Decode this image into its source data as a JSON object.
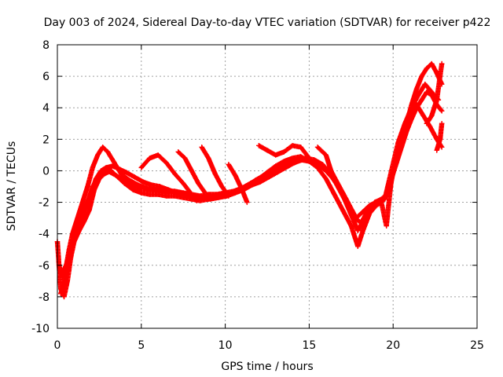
{
  "chart_data": {
    "type": "scatter",
    "title": "Day 003 of 2024, Sidereal Day-to-day VTEC variation (SDTVAR) for receiver p422",
    "xlabel": "GPS time / hours",
    "ylabel": "SDTVAR / TECUs",
    "xlim": [
      0,
      25
    ],
    "ylim": [
      -10,
      8
    ],
    "xticks": [
      0,
      5,
      10,
      15,
      20,
      25
    ],
    "yticks": [
      -10,
      -8,
      -6,
      -4,
      -2,
      0,
      2,
      4,
      6,
      8
    ],
    "grid": true,
    "marker": "+",
    "color": "#ff0000",
    "series": [
      {
        "x": [
          0.0,
          0.2,
          0.4,
          0.6,
          0.8,
          1.0,
          1.3,
          1.6,
          1.9,
          2.2,
          2.5,
          2.8,
          3.2,
          3.6,
          4.0,
          4.5,
          5.0,
          5.5,
          6.0,
          6.5,
          7.0,
          7.5,
          8.0,
          8.5,
          9.0,
          9.5,
          10.0,
          10.5,
          11.0,
          11.5,
          12.0,
          12.5,
          13.0,
          13.5,
          14.0,
          14.5,
          15.0,
          15.5,
          16.0,
          16.5,
          17.0,
          17.5,
          17.9,
          18.2,
          18.6,
          19.0,
          19.3,
          19.6,
          19.9,
          20.2,
          20.5,
          20.8,
          21.1,
          21.4,
          21.7,
          22.0,
          22.3,
          22.6,
          22.9
        ],
        "y": [
          -4.5,
          -7.5,
          -8.0,
          -7.0,
          -5.5,
          -4.5,
          -3.8,
          -3.2,
          -2.5,
          -1.2,
          -0.5,
          -0.2,
          0.0,
          -0.4,
          -0.8,
          -1.2,
          -1.4,
          -1.5,
          -1.5,
          -1.6,
          -1.6,
          -1.7,
          -1.8,
          -1.9,
          -1.8,
          -1.7,
          -1.6,
          -1.4,
          -1.1,
          -0.8,
          -0.5,
          -0.1,
          0.3,
          0.6,
          0.8,
          0.9,
          0.6,
          0.2,
          -0.5,
          -1.5,
          -2.5,
          -3.5,
          -4.8,
          -3.8,
          -2.7,
          -2.2,
          -2.0,
          -3.5,
          -0.5,
          0.5,
          1.5,
          2.5,
          3.3,
          4.0,
          4.5,
          5.0,
          4.8,
          4.2,
          3.8
        ]
      },
      {
        "x": [
          0.1,
          0.3,
          0.5,
          0.7,
          0.9,
          1.2,
          1.5,
          1.8,
          2.1,
          2.4,
          2.7,
          3.0,
          3.4,
          3.8,
          4.3,
          4.8,
          5.3,
          5.8,
          6.3,
          6.8,
          7.3,
          7.8,
          8.3,
          8.8,
          9.3,
          9.8,
          10.3,
          10.8,
          11.3,
          11.8,
          12.3,
          12.8,
          13.3,
          13.8,
          14.3,
          14.8,
          15.3,
          15.8,
          16.3,
          16.8,
          17.3,
          17.7,
          18.1,
          18.5,
          18.9,
          19.3,
          19.6,
          19.9,
          20.2,
          20.5,
          20.8,
          21.1,
          21.4,
          21.7,
          22.0,
          22.3,
          22.6,
          22.9
        ],
        "y": [
          -6.0,
          -6.8,
          -6.2,
          -5.0,
          -4.0,
          -3.0,
          -2.0,
          -1.0,
          0.2,
          1.0,
          1.5,
          1.2,
          0.5,
          -0.2,
          -0.6,
          -0.9,
          -1.1,
          -1.2,
          -1.3,
          -1.3,
          -1.4,
          -1.5,
          -1.6,
          -1.7,
          -1.6,
          -1.5,
          -1.5,
          -1.3,
          -1.0,
          -0.6,
          -0.3,
          0.0,
          0.2,
          0.5,
          0.7,
          0.8,
          0.7,
          0.4,
          -0.2,
          -1.0,
          -2.0,
          -3.0,
          -3.3,
          -2.5,
          -2.0,
          -1.8,
          -1.5,
          -0.5,
          0.8,
          2.0,
          3.0,
          4.2,
          5.2,
          6.0,
          6.5,
          6.8,
          6.2,
          5.5
        ]
      },
      {
        "x": [
          0.2,
          0.5,
          0.8,
          1.1,
          1.4,
          1.7,
          2.0,
          2.3,
          2.6,
          2.9,
          3.3,
          3.7,
          4.1,
          4.6,
          5.1,
          5.6,
          6.1,
          6.6,
          7.1,
          7.6,
          8.1,
          8.6,
          9.1,
          9.6,
          10.1,
          10.6,
          11.1,
          11.6,
          12.1,
          12.6,
          13.1,
          13.6,
          14.1,
          14.6,
          15.1,
          15.6,
          16.1,
          16.6,
          17.1,
          17.5,
          17.9,
          18.3,
          18.7,
          19.1,
          19.5,
          19.9,
          20.3,
          20.7,
          21.1,
          21.5,
          21.9,
          22.3,
          22.7
        ],
        "y": [
          -7.8,
          -6.8,
          -5.2,
          -3.8,
          -3.0,
          -2.2,
          -1.5,
          -0.5,
          0.0,
          0.2,
          0.3,
          0.1,
          -0.1,
          -0.4,
          -0.7,
          -0.9,
          -1.0,
          -1.2,
          -1.4,
          -1.5,
          -1.6,
          -1.7,
          -1.8,
          -1.7,
          -1.6,
          -1.4,
          -1.2,
          -0.9,
          -0.7,
          -0.4,
          -0.1,
          0.2,
          0.5,
          0.7,
          0.6,
          0.3,
          0.0,
          -0.8,
          -1.8,
          -2.8,
          -3.8,
          -3.0,
          -2.4,
          -2.0,
          -1.8,
          0.0,
          1.8,
          3.0,
          4.0,
          4.8,
          5.5,
          5.0,
          4.5
        ]
      },
      {
        "x": [
          0.3,
          0.6,
          0.9,
          1.2,
          1.5,
          1.8,
          2.1,
          2.4,
          2.7,
          3.0,
          3.5,
          4.0,
          4.5,
          5.0,
          5.5,
          6.0,
          6.5,
          7.0,
          7.5,
          8.0,
          8.5,
          9.0,
          9.5,
          10.0,
          10.5,
          11.0,
          11.5,
          12.0,
          12.5,
          13.0,
          13.5,
          14.0,
          14.5,
          15.0,
          15.5,
          16.0,
          16.5,
          17.0,
          17.4,
          17.8,
          18.2,
          18.6,
          19.0,
          19.4,
          19.8,
          20.2,
          20.6,
          21.0,
          21.4,
          21.8,
          22.2,
          22.6,
          22.9
        ],
        "y": [
          -6.5,
          -5.8,
          -4.5,
          -3.5,
          -2.8,
          -2.0,
          -1.0,
          -0.5,
          -0.2,
          0.0,
          -0.3,
          -0.6,
          -0.9,
          -1.1,
          -1.2,
          -1.2,
          -1.3,
          -1.3,
          -1.4,
          -1.5,
          -1.6,
          -1.5,
          -1.5,
          -1.4,
          -1.3,
          -1.1,
          -0.8,
          -0.5,
          -0.2,
          0.1,
          0.4,
          0.6,
          0.7,
          0.6,
          0.4,
          0.0,
          -0.6,
          -1.4,
          -2.2,
          -3.0,
          -2.6,
          -2.2,
          -2.0,
          -1.9,
          -1.2,
          1.0,
          2.5,
          3.5,
          4.2,
          3.5,
          2.8,
          2.0,
          1.5
        ]
      },
      {
        "x": [
          5.0,
          5.5,
          6.0,
          6.5,
          7.0,
          7.5,
          8.0,
          8.3
        ],
        "y": [
          0.2,
          0.8,
          1.0,
          0.5,
          -0.2,
          -0.8,
          -1.5,
          -1.9
        ]
      },
      {
        "x": [
          7.2,
          7.6,
          8.0,
          8.4,
          8.8
        ],
        "y": [
          1.2,
          0.8,
          0.0,
          -0.8,
          -1.4
        ]
      },
      {
        "x": [
          8.6,
          9.0,
          9.4,
          9.8,
          10.2
        ],
        "y": [
          1.5,
          0.8,
          -0.2,
          -1.0,
          -1.6
        ]
      },
      {
        "x": [
          10.2,
          10.6,
          11.0,
          11.3
        ],
        "y": [
          0.4,
          -0.3,
          -1.2,
          -2.0
        ]
      },
      {
        "x": [
          12.0,
          12.5,
          13.0,
          13.5,
          14.0,
          14.5,
          15.0
        ],
        "y": [
          1.6,
          1.3,
          1.0,
          1.2,
          1.6,
          1.5,
          0.8
        ]
      },
      {
        "x": [
          15.5,
          16.0,
          16.3,
          16.8
        ],
        "y": [
          1.5,
          1.0,
          0.0,
          -1.0
        ]
      },
      {
        "x": [
          22.0,
          22.3,
          22.6,
          22.9
        ],
        "y": [
          3.0,
          3.5,
          4.5,
          6.8
        ]
      },
      {
        "x": [
          22.6,
          22.8,
          22.9
        ],
        "y": [
          1.3,
          2.0,
          3.0
        ]
      }
    ]
  }
}
